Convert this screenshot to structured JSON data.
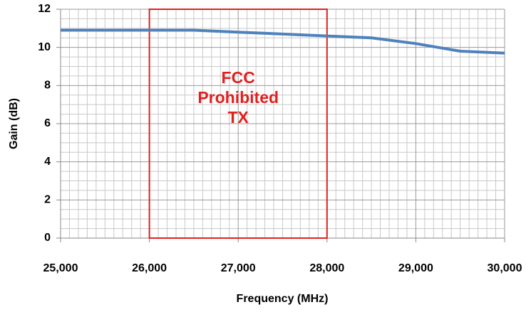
{
  "chart_data": {
    "type": "line",
    "x_label": "Frequency (MHz)",
    "y_label": "Gain  (dB)",
    "x": [
      25000,
      25500,
      26000,
      26500,
      27000,
      27500,
      28000,
      28500,
      29000,
      29500,
      30000
    ],
    "series": [
      {
        "color": "#4f81bd",
        "values": [
          10.9,
          10.9,
          10.9,
          10.9,
          10.8,
          10.7,
          10.6,
          10.5,
          10.2,
          9.8,
          9.7
        ]
      }
    ],
    "xlim": [
      25000,
      30000
    ],
    "ylim": [
      0,
      12
    ],
    "xticks": [
      {
        "value": 25000,
        "label": "25,000"
      },
      {
        "value": 26000,
        "label": "26,000"
      },
      {
        "value": 27000,
        "label": "27,000"
      },
      {
        "value": 28000,
        "label": "28,000"
      },
      {
        "value": 29000,
        "label": "29,000"
      },
      {
        "value": 30000,
        "label": "30,000"
      }
    ],
    "yticks": [
      0,
      2,
      4,
      6,
      8,
      10,
      12
    ],
    "grid": true,
    "annotations": [
      {
        "text": [
          "FCC",
          "Prohibited",
          "TX"
        ],
        "x": [
          26000,
          28000
        ],
        "color": "#e0201f"
      }
    ]
  }
}
